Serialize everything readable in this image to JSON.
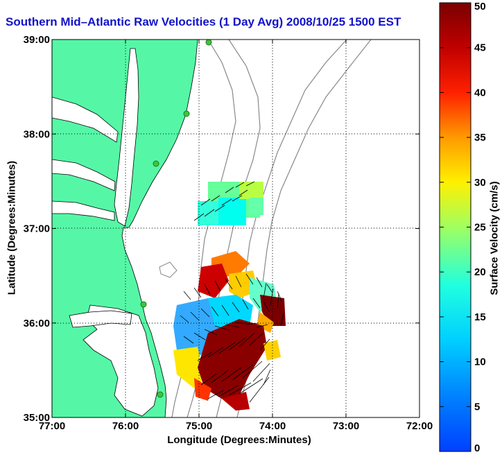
{
  "title": "Southern Mid–Atlantic Raw Velocities (1 Day Avg) 2008/10/25 1500 EST",
  "xlabel": "Longitude (Degrees:Minutes)",
  "ylabel": "Latitude (Degrees:Minutes)",
  "colorbar_label": "Surface Velocity (cm/s)",
  "colors": {
    "land": "#55f7a6",
    "title": "#1212c8",
    "stations": "#3ec43e"
  },
  "chart_data": {
    "type": "heatmap",
    "xlim": [
      -77,
      -72
    ],
    "ylim": [
      35,
      39
    ],
    "x_ticks": [
      "77:00",
      "76:00",
      "75:00",
      "74:00",
      "73:00",
      "72:00"
    ],
    "y_ticks": [
      "35:00",
      "36:00",
      "37:00",
      "38:00",
      "39:00"
    ],
    "colorbar": {
      "min": 0,
      "max": 50,
      "ticks": [
        "0",
        "5",
        "10",
        "15",
        "20",
        "25",
        "30",
        "35",
        "40",
        "45",
        "50"
      ]
    },
    "grid": true
  }
}
